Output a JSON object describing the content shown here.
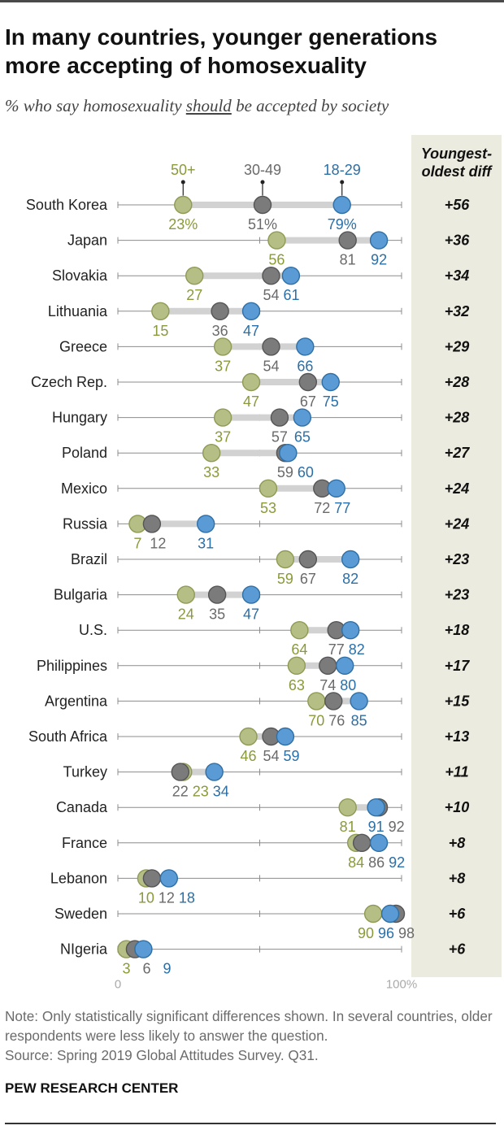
{
  "title": "In many countries, younger generations more accepting of homosexuality",
  "subtitle": {
    "before": "% who say homosexuality ",
    "emphasis": "should",
    "after": " be accepted by society"
  },
  "diff_header": "Youngest-oldest diff",
  "note": "Note: Only statistically significant differences shown. In several countries, older respondents were less likely to answer the question.",
  "source": "Source: Spring 2019 Global Attitudes Survey. Q31.",
  "org": "PEW RESEARCH CENTER",
  "colors": {
    "age_50plus": "#b5be84",
    "age_30_49": "#7b7b7b",
    "age_18_29": "#5b9bd5",
    "label_50plus": "#8a9a3a",
    "label_30_49": "#6a6a6a",
    "label_18_29": "#2a6fa8",
    "range_bar": "#d2d2d2",
    "axis": "#8c8c8c",
    "diff_background": "#ecebdf"
  },
  "chart_data": {
    "type": "scatter",
    "title": "In many countries, younger generations more accepting of homosexuality",
    "subtitle": "% who say homosexuality should be accepted by society",
    "xlim": [
      0,
      100
    ],
    "axis_labels": [
      "0",
      "100%"
    ],
    "legend": [
      "50+",
      "30-49",
      "18-29"
    ],
    "series_names": [
      "50+",
      "30-49",
      "18-29"
    ],
    "categories": [
      "South Korea",
      "Japan",
      "Slovakia",
      "Lithuania",
      "Greece",
      "Czech Rep.",
      "Hungary",
      "Poland",
      "Mexico",
      "Russia",
      "Brazil",
      "Bulgaria",
      "U.S.",
      "Philippines",
      "Argentina",
      "South Africa",
      "Turkey",
      "Canada",
      "France",
      "Lebanon",
      "Sweden",
      "NIgeria"
    ],
    "series": [
      {
        "name": "50+",
        "values": [
          23,
          56,
          27,
          15,
          37,
          47,
          37,
          33,
          53,
          7,
          59,
          24,
          64,
          63,
          70,
          46,
          23,
          81,
          84,
          10,
          90,
          3
        ]
      },
      {
        "name": "30-49",
        "values": [
          51,
          81,
          54,
          36,
          54,
          67,
          57,
          59,
          72,
          12,
          67,
          35,
          77,
          74,
          76,
          54,
          22,
          92,
          86,
          12,
          98,
          6
        ]
      },
      {
        "name": "18-29",
        "values": [
          79,
          92,
          61,
          47,
          66,
          75,
          65,
          60,
          77,
          31,
          82,
          47,
          82,
          80,
          85,
          59,
          34,
          91,
          92,
          18,
          96,
          9
        ]
      }
    ],
    "diff": [
      "+56",
      "+36",
      "+34",
      "+32",
      "+29",
      "+28",
      "+28",
      "+27",
      "+24",
      "+24",
      "+23",
      "+23",
      "+18",
      "+17",
      "+15",
      "+13",
      "+11",
      "+10",
      "+8",
      "+8",
      "+6",
      "+6"
    ],
    "percent_suffix_row": "South Korea"
  }
}
